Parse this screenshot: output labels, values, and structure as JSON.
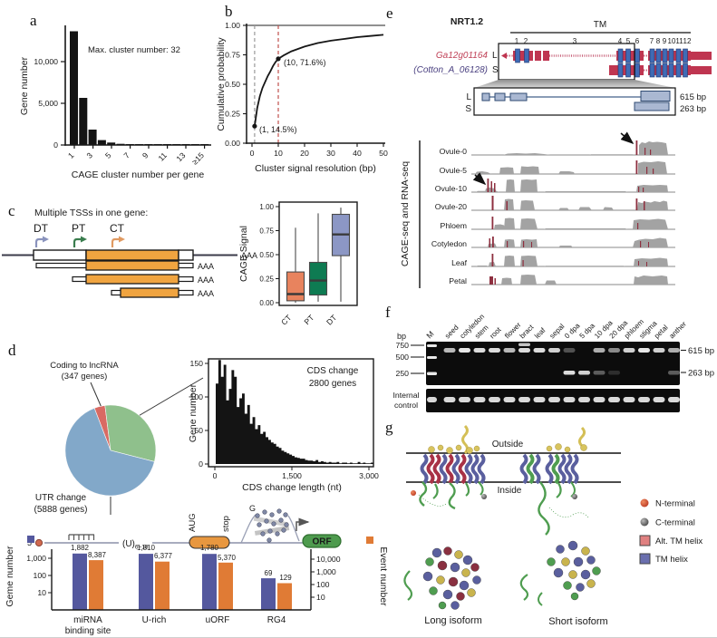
{
  "panel_a": {
    "label": "a",
    "ylabel": "Gene number",
    "xlabel": "CAGE cluster number per gene",
    "annotation": "Max. cluster number: 32",
    "yticks": [
      "0",
      "5,000",
      "10,000"
    ],
    "xticks": [
      "1",
      "3",
      "5",
      "7",
      "9",
      "11",
      "13",
      "≥15"
    ]
  },
  "panel_b": {
    "label": "b",
    "ylabel": "Cumulative probability",
    "xlabel": "Cluster signal resolution (bp)",
    "yticks": [
      "0.00",
      "0.25",
      "0.50",
      "0.75",
      "1.00"
    ],
    "xticks": [
      "0",
      "10",
      "20",
      "30",
      "40",
      "50"
    ],
    "point1": "(1, 14.5%)",
    "point2": "(10, 71.6%)"
  },
  "panel_c": {
    "label": "c",
    "title": "Multiple TSSs in one gene:",
    "tss_dt": "DT",
    "tss_pt": "PT",
    "tss_ct": "CT",
    "polya": "AAA",
    "boxplot": {
      "ylabel": "CAGE Signal",
      "yticks": [
        "0.00",
        "0.25",
        "0.50",
        "0.75",
        "1.00"
      ],
      "categories": [
        "CT",
        "PT",
        "DT"
      ]
    }
  },
  "panel_d": {
    "label": "d",
    "pie_label_lnc_1": "Coding to lncRNA",
    "pie_label_lnc_2": "(347 genes)",
    "pie_label_utr_1": "UTR change",
    "pie_label_utr_2": "(5888 genes)",
    "hist_title_1": "CDS change",
    "hist_title_2": "2800 genes",
    "hist_ylabel": "Gene number",
    "hist_xlabel": "CDS change length (nt)",
    "hist_yticks": [
      "0",
      "50",
      "100",
      "150"
    ],
    "hist_xticks": [
      "0",
      "1,500",
      "3,000"
    ],
    "mrna": {
      "cap": "5'",
      "u_label": "(U)",
      "u_sub": "6~18",
      "aug": "AUG",
      "stop": "stop",
      "g": "G",
      "orf": "ORF"
    },
    "bars": {
      "left_label": "Geme number",
      "right_label": "Event number",
      "left_ticks": [
        "1,000",
        "100",
        "10"
      ],
      "right_ticks": [
        "10,000",
        "1,000",
        "100",
        "10"
      ],
      "groups": [
        {
          "name_1": "miRNA",
          "name_2": "binding site",
          "gene": "1,882",
          "event": "8,387"
        },
        {
          "name_1": "U-rich",
          "name_2": "",
          "gene": "1,810",
          "event": "6,377"
        },
        {
          "name_1": "uORF",
          "name_2": "",
          "gene": "1,780",
          "event": "5,370"
        },
        {
          "name_1": "RG4",
          "name_2": "",
          "gene": "69",
          "event": "129"
        }
      ]
    }
  },
  "panel_e": {
    "label": "e",
    "gene_title": "NRT1.2",
    "tm_label": "TM",
    "tm_numbers": [
      "1",
      "2",
      "3",
      "4",
      "5",
      "6",
      "7",
      "8",
      "9",
      "10",
      "11",
      "12"
    ],
    "gene_name_red": "Ga12g01164",
    "gene_name_purple": "(Cotton_A_06128)",
    "iso_l": "L",
    "iso_s": "S",
    "size_l": "615 bp",
    "size_s": "263 bp",
    "track_axis": "CAGE-seq and RNA-seq",
    "tracks": [
      "Ovule-0",
      "Ovule-5",
      "Ovule-10",
      "Ovule-20",
      "Phloem",
      "Cotyledon",
      "Leaf",
      "Petal"
    ]
  },
  "panel_f": {
    "label": "f",
    "bp": "bp",
    "markers": [
      "750",
      "500",
      "250"
    ],
    "marker_lane": "M",
    "lanes": [
      "seed",
      "cotyledon",
      "stem",
      "root",
      "flower",
      "bract",
      "leaf",
      "sepal",
      "0 dpa",
      "5 dpa",
      "10 dpa",
      "20 dpa",
      "phloem",
      "stigma",
      "petal",
      "anther"
    ],
    "lane_bands": [
      {
        "b615": 0.75,
        "b263": 0,
        "upper": false
      },
      {
        "b615": 0.95,
        "b263": 0,
        "upper": false
      },
      {
        "b615": 0.9,
        "b263": 0,
        "upper": false
      },
      {
        "b615": 0.9,
        "b263": 0,
        "upper": false
      },
      {
        "b615": 0.75,
        "b263": 0,
        "upper": false
      },
      {
        "b615": 0.9,
        "b263": 0,
        "upper": true
      },
      {
        "b615": 0.9,
        "b263": 0,
        "upper": false
      },
      {
        "b615": 0.85,
        "b263": 0,
        "upper": false
      },
      {
        "b615": 0.3,
        "b263": 0.9,
        "upper": false
      },
      {
        "b615": 0,
        "b263": 0.85,
        "upper": false
      },
      {
        "b615": 0.7,
        "b263": 0.35,
        "upper": false
      },
      {
        "b615": 0.55,
        "b263": 0.15,
        "upper": false
      },
      {
        "b615": 0.85,
        "b263": 0,
        "upper": false
      },
      {
        "b615": 0.95,
        "b263": 0,
        "upper": false
      },
      {
        "b615": 0.85,
        "b263": 0,
        "upper": false
      },
      {
        "b615": 0.7,
        "b263": 0.35,
        "upper": false
      }
    ],
    "size_top": "615 bp",
    "size_bottom": "263 bp",
    "internal_1": "Internal",
    "internal_2": "control"
  },
  "panel_g": {
    "label": "g",
    "outside": "Outside",
    "inside": "Inside",
    "legend": [
      {
        "label": "N-terminal"
      },
      {
        "label": "C-terminal"
      },
      {
        "label": "Alt. TM helix"
      },
      {
        "label": "TM helix"
      }
    ],
    "long_label": "Long isoform",
    "short_label": "Short isoform"
  },
  "chart_data": [
    {
      "id": "panel_a_bar",
      "type": "bar",
      "title": "",
      "xlabel": "CAGE cluster number per gene",
      "ylabel": "Gene number",
      "annotation": "Max. cluster number: 32",
      "categories": [
        "1",
        "2",
        "3",
        "4",
        "5",
        "6",
        "7",
        "8",
        "9",
        "10",
        "11",
        "12",
        "13",
        "14",
        "≥15"
      ],
      "values": [
        14000,
        5800,
        1900,
        600,
        300,
        150,
        100,
        80,
        60,
        50,
        40,
        35,
        30,
        25,
        60
      ],
      "ylim": [
        0,
        14500
      ]
    },
    {
      "id": "panel_b_line",
      "type": "line",
      "xlabel": "Cluster signal resolution (bp)",
      "ylabel": "Cumulative probability",
      "xlim": [
        0,
        50
      ],
      "ylim": [
        0,
        1
      ],
      "x": [
        1,
        2,
        3,
        4,
        5,
        6,
        7,
        8,
        9,
        10,
        12,
        15,
        20,
        25,
        30,
        35,
        40,
        45,
        50
      ],
      "y": [
        0.145,
        0.3,
        0.4,
        0.47,
        0.52,
        0.57,
        0.61,
        0.655,
        0.69,
        0.716,
        0.745,
        0.78,
        0.82,
        0.85,
        0.87,
        0.885,
        0.9,
        0.91,
        0.92
      ],
      "marked_points": [
        [
          1,
          0.145
        ],
        [
          10,
          0.716
        ]
      ],
      "annotations": [
        "(1, 14.5%)",
        "(10, 71.6%)"
      ],
      "hline": 1.0,
      "vlines": [
        1,
        10
      ]
    },
    {
      "id": "panel_c_boxplot",
      "type": "boxplot",
      "ylabel": "CAGE Signal",
      "categories": [
        "CT",
        "PT",
        "DT"
      ],
      "colors": [
        "#E8835E",
        "#0E7B52",
        "#8C97C5"
      ],
      "stats": [
        {
          "whisker_low": 0.0,
          "q1": 0.02,
          "median": 0.09,
          "q3": 0.32,
          "whisker_high": 0.78
        },
        {
          "whisker_low": 0.01,
          "q1": 0.08,
          "median": 0.23,
          "q3": 0.42,
          "whisker_high": 0.93
        },
        {
          "whisker_low": 0.01,
          "q1": 0.49,
          "median": 0.71,
          "q3": 0.92,
          "whisker_high": 0.99
        }
      ]
    },
    {
      "id": "panel_d_pie",
      "type": "pie",
      "start_angle_deg": 111,
      "slices": [
        {
          "label": "Coding to lncRNA",
          "genes": 347,
          "color": "#D96A63"
        },
        {
          "label": "CDS change",
          "genes": 2800,
          "color": "#8FC08C"
        },
        {
          "label": "UTR change",
          "genes": 5888,
          "color": "#82A8C9"
        }
      ]
    },
    {
      "id": "panel_d_histogram",
      "type": "bar",
      "title": "CDS change 2800 genes",
      "xlabel": "CDS change length (nt)",
      "ylabel": "Gene number",
      "xlim": [
        0,
        3000
      ],
      "ylim": [
        0,
        160
      ],
      "bin_width_nt": 50,
      "values": [
        120,
        155,
        130,
        148,
        95,
        112,
        140,
        130,
        85,
        98,
        105,
        75,
        88,
        60,
        70,
        52,
        58,
        45,
        48,
        40,
        36,
        32,
        30,
        26,
        24,
        20,
        18,
        16,
        14,
        12,
        10,
        9,
        8,
        8,
        6,
        5,
        5,
        4,
        6,
        3,
        4,
        3,
        2,
        3,
        2,
        2,
        3,
        1,
        2,
        2,
        1,
        2,
        1,
        1,
        3,
        1,
        2,
        1,
        1,
        2
      ]
    },
    {
      "id": "panel_d_bars",
      "type": "bar",
      "yscale": "log",
      "categories": [
        "miRNA binding site",
        "U-rich",
        "uORF",
        "RG4"
      ],
      "series": [
        {
          "name": "Geme number",
          "values": [
            1882,
            1810,
            1780,
            69
          ],
          "color": "#54589E"
        },
        {
          "name": "Event number",
          "values": [
            8387,
            6377,
            5370,
            129
          ],
          "color": "#E07B35"
        }
      ]
    }
  ]
}
